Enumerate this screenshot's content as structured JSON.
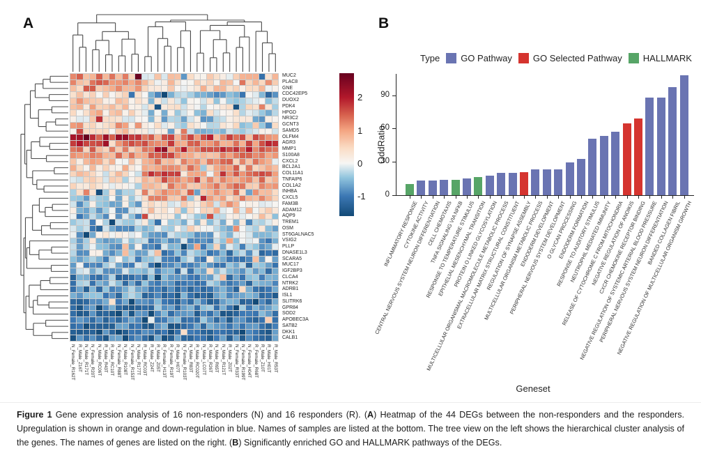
{
  "panels": {
    "a_label": "A",
    "b_label": "B"
  },
  "chart_data": [
    {
      "type": "heatmap",
      "panel": "A",
      "rows_genes": [
        "MUC2",
        "PLAC8",
        "GNE",
        "CDC42EP5",
        "DUOX2",
        "PDK4",
        "HPGD",
        "NR3C2",
        "GCNT3",
        "SAMD5",
        "OLFM4",
        "AGR3",
        "MMP1",
        "S100A8",
        "CXCL2",
        "BCL2A1",
        "COL11A1",
        "TNFAIP6",
        "COL1A2",
        "INHBA",
        "CXCL5",
        "FAM3B",
        "ADAM12",
        "AQP9",
        "TREM1",
        "OSM",
        "ST6GALNAC5",
        "VSIG2",
        "PLLP",
        "DNASE1L3",
        "SCARA5",
        "MUC17",
        "IGF2BP3",
        "CLCA4",
        "NTRK2",
        "ADRB1",
        "ISL1",
        "SLITRK6",
        "GPR84",
        "SOD2",
        "APOBEC3A",
        "SATB2",
        "DKK1",
        "CALB1"
      ],
      "cols_samples": [
        "N_Female_R162T",
        "R_Male_Z16T",
        "N_Male_R171T",
        "N_Female_R20T",
        "N_Male_RC06T",
        "R_Male_R43T",
        "R_Male_RC10T",
        "N_Female_R88T",
        "N_Male_R108T",
        "N_Female_R153T",
        "N_Male_R177T",
        "R_Male_RC03T",
        "R_Male_Z24T",
        "R_Male_Z05T",
        "R_Female_H13T",
        "R_Female_R19T",
        "R_Male_H07T",
        "N_Female_R103T",
        "N_Male_R83T",
        "R_Male_RC020T",
        "N_Male_LC07T",
        "R_Male_R26T",
        "N_Male_R65T",
        "N_Male_R121T",
        "R_Male_Z02T",
        "N_Female_R33T",
        "N_Female_R199T",
        "N_Female_H04T",
        "R_Female_R68T",
        "R_Male_Z10T",
        "R_Male_H01T",
        "R_Male_R53T"
      ],
      "left_cluster_cols": 11,
      "row_group_means_left": [
        1.1,
        1.0,
        1.0,
        0.2,
        0.6,
        0.6,
        0.5,
        0.4,
        0.7,
        0.4,
        2.0,
        1.6,
        1.1,
        0.9,
        0.5,
        0.4,
        0.3,
        0.2,
        0.1,
        -0.1,
        -0.3,
        -0.4,
        -0.35,
        -0.5,
        -0.55,
        -0.65,
        -0.3,
        -0.25,
        -0.4,
        -0.3,
        -0.5,
        -0.45,
        -0.6,
        -0.8,
        -0.7,
        -0.9,
        -0.8,
        -1.0,
        -1.05,
        -1.0,
        -1.15,
        -1.1,
        -1.25,
        -1.2
      ],
      "row_group_means_right": [
        0.4,
        0.4,
        0.45,
        -0.5,
        -0.2,
        0.0,
        -0.1,
        -0.25,
        0.1,
        -0.3,
        1.2,
        1.4,
        1.5,
        1.2,
        1.0,
        1.0,
        1.3,
        1.2,
        1.0,
        0.9,
        0.8,
        0.35,
        0.45,
        0.05,
        -0.1,
        -0.2,
        -0.5,
        -0.55,
        -0.6,
        -0.7,
        -0.6,
        -0.75,
        -0.7,
        -0.85,
        -0.8,
        -0.8,
        -0.95,
        -0.9,
        -0.85,
        -1.0,
        -0.9,
        -1.05,
        -1.0,
        -1.15
      ],
      "colorbar_ticks": [
        2,
        1,
        0,
        -1
      ],
      "colorscale": "red-up / blue-down diverging"
    },
    {
      "type": "bar",
      "panel": "B",
      "categories": [
        "INFLAMMATORY RESPONSE",
        "CYTOKINE ACTIVITY",
        "CENTRAL NERVOUS SYSTEM NEURON DIFFERENTIATION",
        "CELL CHEMOTAXIS",
        "TNFA SIGNALING VIA NFKB",
        "RESPONSE TO TEMPERATURE STIMULUS",
        "EPITHELIAL MESENCHYMAL TRANSITION",
        "PROTEIN O LINKED GLYCOSYLATION",
        "MULTICELLULAR ORGANISMAL MACROMOLECULE METABOLIC PROCESS",
        "EXTRACELLULAR MATRIX STRUCTURAL CONSTITUENT",
        "REGULATION OF SYNAPSE ASSEMBLY",
        "MULTICELLULAR ORGANISM METABOLIC PROCESS",
        "ENDODERM DEVELOPMENT",
        "PERIPHERAL NERVOUS SYSTEM DEVELOPMENT",
        "O GLYCAN PROCESSING",
        "ENDODERM FORMATION",
        "RESPONSE TO AUDITORY STIMULUS",
        "NEUTROPHIL MEDIATED IMMUNITY",
        "RELEASE OF CYTOCHROME C FROM MITOCHONDRIA",
        "NEGATIVE REGULATION OF ANOIKIS",
        "CXCR CHEMOKINE RECEPTOR BINDING",
        "NEGATIVE REGULATION OF SYSTEMIC ARTERIAL BLOOD PRESSURE",
        "PERIPHERAL NERVOUS SYSTEM NEURON DIFFERENTIATION",
        "BANDED COLLAGEN FIBRIL",
        "NEGATIVE REGULATION OF MULTICELLULAR ORGANISM GROWTH"
      ],
      "values": [
        10,
        13,
        13,
        13.5,
        14,
        15,
        16.5,
        17.5,
        20,
        20,
        20.5,
        23,
        23.5,
        23.5,
        29.5,
        32.5,
        51,
        53.5,
        57,
        64.5,
        69,
        88,
        88,
        97,
        108
      ],
      "bar_types": [
        "HALLMARK",
        "GO",
        "GO",
        "GO",
        "HALLMARK",
        "GO",
        "HALLMARK",
        "GO",
        "GO",
        "GO",
        "SELECTED",
        "GO",
        "GO",
        "GO",
        "GO",
        "GO",
        "GO",
        "GO",
        "GO",
        "SELECTED",
        "SELECTED",
        "GO",
        "GO",
        "GO",
        "GO"
      ],
      "xlabel": "Geneset",
      "ylabel": "OddRatio",
      "yticks": [
        0,
        30,
        60,
        90
      ],
      "ylim": [
        0,
        112
      ],
      "legend": {
        "title": "Type",
        "items": [
          {
            "key": "GO",
            "label": "GO Pathway",
            "color": "#6A74B2"
          },
          {
            "key": "SELECTED",
            "label": "GO Selected Pathway",
            "color": "#D5342F"
          },
          {
            "key": "HALLMARK",
            "label": "HALLMARK",
            "color": "#57A567"
          }
        ]
      }
    }
  ],
  "caption": {
    "segments": [
      {
        "text": "Figure 1",
        "bold": true
      },
      {
        "text": " Gene expression analysis of 16 non-responders (N) and 16 responders (R). (",
        "bold": false
      },
      {
        "text": "A",
        "bold": true
      },
      {
        "text": ") Heatmap of the 44 DEGs between the non-responders and the responders. Upregulation is shown in orange and down-regulation in blue. Names of samples are listed at the bottom. The tree view on the left shows the hierarchical cluster analysis of the genes. The names of genes are listed on the right. (",
        "bold": false
      },
      {
        "text": "B",
        "bold": true
      },
      {
        "text": ") Significantly enriched GO and HALLMARK pathways of the DEGs.",
        "bold": false
      }
    ]
  }
}
